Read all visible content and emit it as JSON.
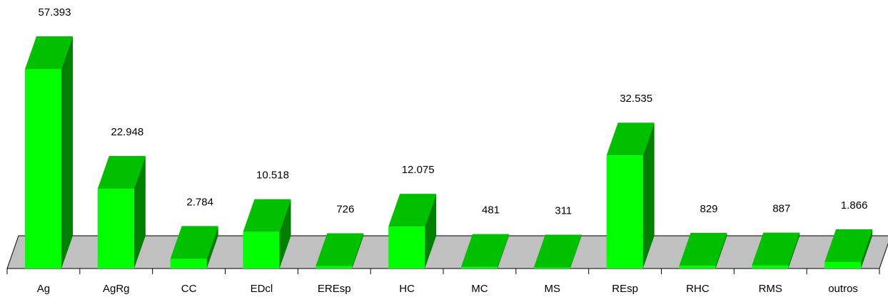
{
  "chart_data": {
    "type": "bar3d",
    "categories": [
      "Ag",
      "AgRg",
      "CC",
      "EDcl",
      "EREsp",
      "HC",
      "MC",
      "MS",
      "REsp",
      "RHC",
      "RMS",
      "outros"
    ],
    "values": [
      57393,
      22948,
      2784,
      10518,
      726,
      12075,
      481,
      311,
      32535,
      829,
      887,
      1866
    ],
    "value_labels": [
      "57.393",
      "22.948",
      "2.784",
      "10.518",
      "726",
      "12.075",
      "481",
      "311",
      "32.535",
      "829",
      "887",
      "1.866"
    ],
    "colors": {
      "front": "#00ff00",
      "top": "#00c000",
      "side": "#008000",
      "floor": "#c0c0c0"
    }
  }
}
